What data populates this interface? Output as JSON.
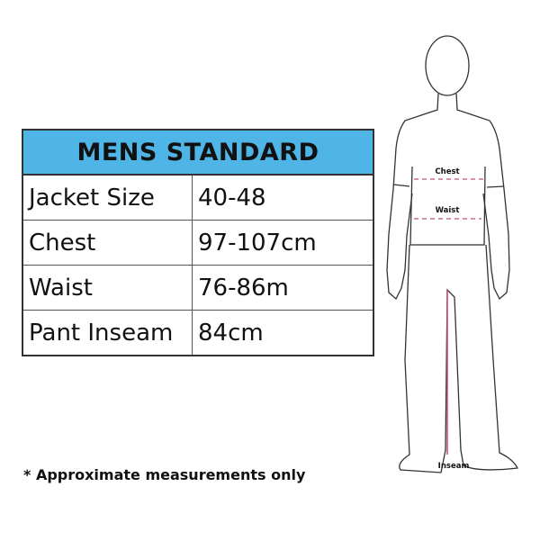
{
  "table": {
    "title": "MENS STANDARD",
    "header_color": "#4fb4e6",
    "rows": [
      {
        "label": "Jacket Size",
        "value": "40-48"
      },
      {
        "label": "Chest",
        "value": "97-107cm"
      },
      {
        "label": "Waist",
        "value": "76-86m"
      },
      {
        "label": "Pant Inseam",
        "value": "84cm"
      }
    ]
  },
  "figure": {
    "chest_label": "Chest",
    "waist_label": "Waist",
    "inseam_label": "Inseam",
    "measure_color": "#c0506a"
  },
  "note": "* Approximate measurements only"
}
